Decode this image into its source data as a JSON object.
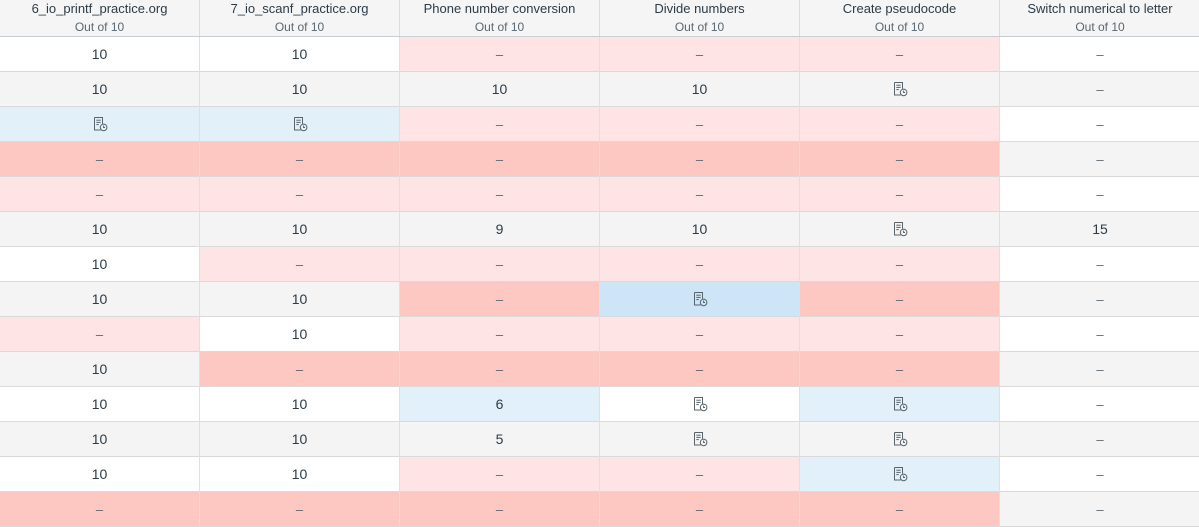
{
  "columns": [
    {
      "title": "6_io_printf_practice.org",
      "subtitle": "Out of 10"
    },
    {
      "title": "7_io_scanf_practice.org",
      "subtitle": "Out of 10"
    },
    {
      "title": "Phone number conversion",
      "subtitle": "Out of 10"
    },
    {
      "title": "Divide numbers",
      "subtitle": "Out of 10"
    },
    {
      "title": "Create pseudocode",
      "subtitle": "Out of 10"
    },
    {
      "title": "Switch numerical to letter",
      "subtitle": "Out of 10"
    }
  ],
  "colors": {
    "missing": "#fee4e4",
    "late": "#fec8c2",
    "submitted": "#e2f0fa",
    "submitted_selected": "#cde5f6",
    "row_alt": "#f4f4f4"
  },
  "rows": [
    [
      {
        "v": "10"
      },
      {
        "v": "10"
      },
      {
        "v": "–",
        "s": "missing"
      },
      {
        "v": "–",
        "s": "missing"
      },
      {
        "v": "–",
        "s": "missing"
      },
      {
        "v": "–"
      }
    ],
    [
      {
        "v": "10"
      },
      {
        "v": "10"
      },
      {
        "v": "10"
      },
      {
        "v": "10"
      },
      {
        "icon": "submission-needs-grading-icon"
      },
      {
        "v": "–"
      }
    ],
    [
      {
        "icon": "submission-needs-grading-icon",
        "s": "sub"
      },
      {
        "icon": "submission-needs-grading-icon",
        "s": "sub"
      },
      {
        "v": "–",
        "s": "missing"
      },
      {
        "v": "–",
        "s": "missing"
      },
      {
        "v": "–",
        "s": "missing"
      },
      {
        "v": "–"
      }
    ],
    [
      {
        "v": "–",
        "s": "late"
      },
      {
        "v": "–",
        "s": "late"
      },
      {
        "v": "–",
        "s": "late"
      },
      {
        "v": "–",
        "s": "late"
      },
      {
        "v": "–",
        "s": "late"
      },
      {
        "v": "–"
      }
    ],
    [
      {
        "v": "–",
        "s": "missing"
      },
      {
        "v": "–",
        "s": "missing"
      },
      {
        "v": "–",
        "s": "missing"
      },
      {
        "v": "–",
        "s": "missing"
      },
      {
        "v": "–",
        "s": "missing"
      },
      {
        "v": "–"
      }
    ],
    [
      {
        "v": "10"
      },
      {
        "v": "10"
      },
      {
        "v": "9"
      },
      {
        "v": "10"
      },
      {
        "icon": "submission-needs-grading-icon"
      },
      {
        "v": "15"
      }
    ],
    [
      {
        "v": "10"
      },
      {
        "v": "–",
        "s": "missing"
      },
      {
        "v": "–",
        "s": "missing"
      },
      {
        "v": "–",
        "s": "missing"
      },
      {
        "v": "–",
        "s": "missing"
      },
      {
        "v": "–"
      }
    ],
    [
      {
        "v": "10"
      },
      {
        "v": "10"
      },
      {
        "v": "–",
        "s": "late"
      },
      {
        "icon": "submission-needs-grading-icon",
        "s": "subdark"
      },
      {
        "v": "–",
        "s": "late"
      },
      {
        "v": "–"
      }
    ],
    [
      {
        "v": "–",
        "s": "missing"
      },
      {
        "v": "10"
      },
      {
        "v": "–",
        "s": "missing"
      },
      {
        "v": "–",
        "s": "missing"
      },
      {
        "v": "–",
        "s": "missing"
      },
      {
        "v": "–"
      }
    ],
    [
      {
        "v": "10"
      },
      {
        "v": "–",
        "s": "late"
      },
      {
        "v": "–",
        "s": "late"
      },
      {
        "v": "–",
        "s": "late"
      },
      {
        "v": "–",
        "s": "late"
      },
      {
        "v": "–"
      }
    ],
    [
      {
        "v": "10"
      },
      {
        "v": "10"
      },
      {
        "v": "6",
        "s": "sub"
      },
      {
        "icon": "submission-needs-grading-icon"
      },
      {
        "icon": "submission-needs-grading-icon",
        "s": "sub"
      },
      {
        "v": "–"
      }
    ],
    [
      {
        "v": "10"
      },
      {
        "v": "10"
      },
      {
        "v": "5"
      },
      {
        "icon": "submission-needs-grading-icon"
      },
      {
        "icon": "submission-needs-grading-icon"
      },
      {
        "v": "–"
      }
    ],
    [
      {
        "v": "10"
      },
      {
        "v": "10"
      },
      {
        "v": "–",
        "s": "missing"
      },
      {
        "v": "–",
        "s": "missing"
      },
      {
        "icon": "submission-needs-grading-icon",
        "s": "sub"
      },
      {
        "v": "–"
      }
    ],
    [
      {
        "v": "–",
        "s": "late"
      },
      {
        "v": "–",
        "s": "late"
      },
      {
        "v": "–",
        "s": "late"
      },
      {
        "v": "–",
        "s": "late"
      },
      {
        "v": "–",
        "s": "late"
      },
      {
        "v": "–"
      }
    ]
  ]
}
